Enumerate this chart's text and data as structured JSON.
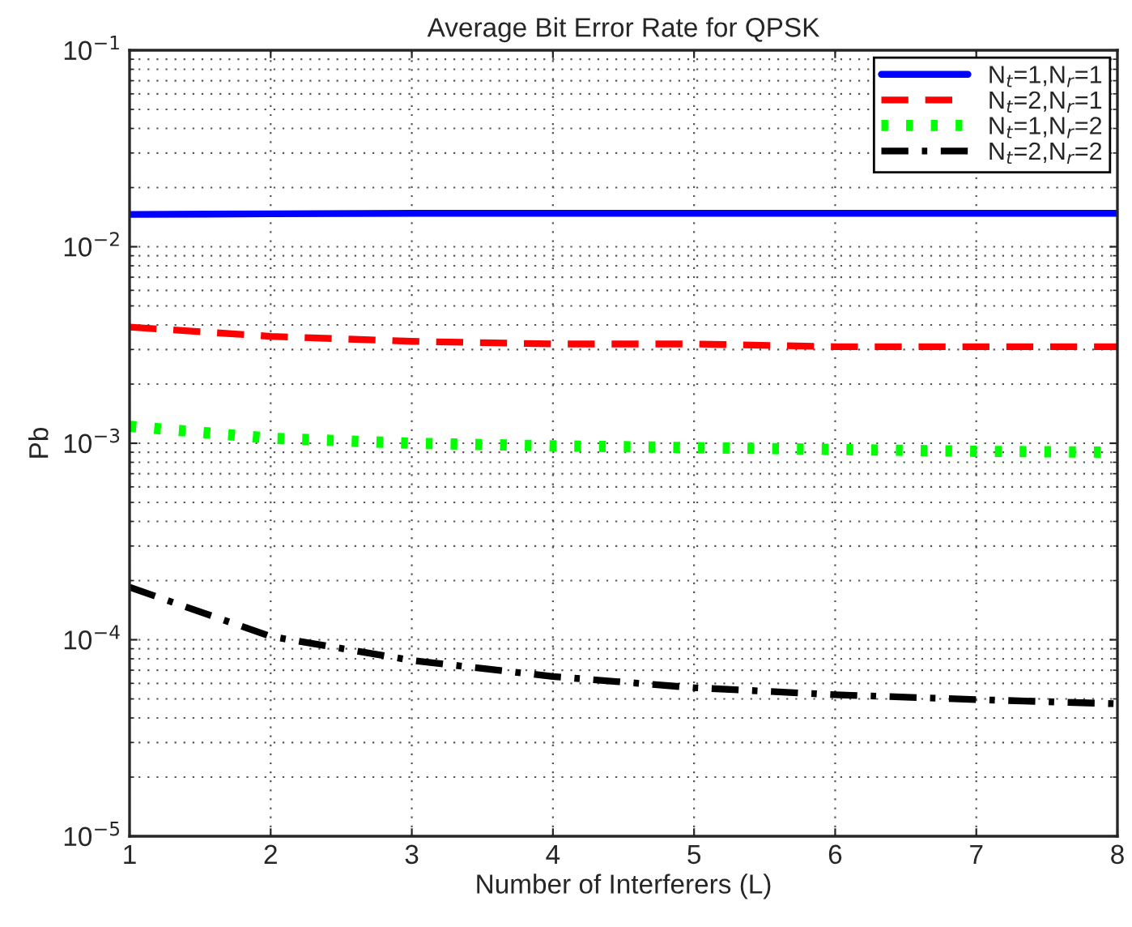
{
  "chart_data": {
    "type": "line",
    "title": "Average Bit Error Rate for QPSK",
    "xlabel": "Number of Interferers (L)",
    "ylabel": "Pb",
    "x": [
      1,
      2,
      3,
      4,
      5,
      6,
      7,
      8
    ],
    "series": [
      {
        "name": "N$_{t}$=1,N$_{r}$=1",
        "color": "#0000ff",
        "line_style": "solid",
        "values": [
          0.0146,
          0.0147,
          0.0148,
          0.0148,
          0.0148,
          0.0148,
          0.0148,
          0.0148
        ]
      },
      {
        "name": "N$_{t}$=2,N$_{r}$=1",
        "color": "#ff0000",
        "line_style": "dashed",
        "values": [
          0.0039,
          0.0035,
          0.0033,
          0.0032,
          0.0032,
          0.0031,
          0.0031,
          0.0031
        ]
      },
      {
        "name": "N$_{t}$=1,N$_{r}$=2",
        "color": "#00ff00",
        "line_style": "dotted",
        "values": [
          0.00122,
          0.00106,
          0.001,
          0.00097,
          0.00095,
          0.00093,
          0.00091,
          0.0009
        ]
      },
      {
        "name": "N$_{t}$=2,N$_{r}$=2",
        "color": "#000000",
        "line_style": "dashdot",
        "values": [
          0.000185,
          0.000104,
          7.85e-05,
          6.5e-05,
          5.7e-05,
          5.25e-05,
          4.96e-05,
          4.72e-05
        ]
      }
    ],
    "log": "y",
    "xlim": [
      1,
      8
    ],
    "xticks": [
      1,
      2,
      3,
      4,
      5,
      6,
      7,
      8
    ],
    "ylim": [
      1e-05,
      0.1
    ],
    "yticks": [
      {
        "value": 1e-05,
        "label": "10$^{−5}$"
      },
      {
        "value": 0.0001,
        "label": "10$^{−4}$"
      },
      {
        "value": 0.001,
        "label": "10$^{−3}$"
      },
      {
        "value": 0.01,
        "label": "10$^{−2}$"
      },
      {
        "value": 0.1,
        "label": "10$^{−1}$"
      }
    ],
    "grid": true,
    "legend": "top right",
    "marker": "none"
  }
}
